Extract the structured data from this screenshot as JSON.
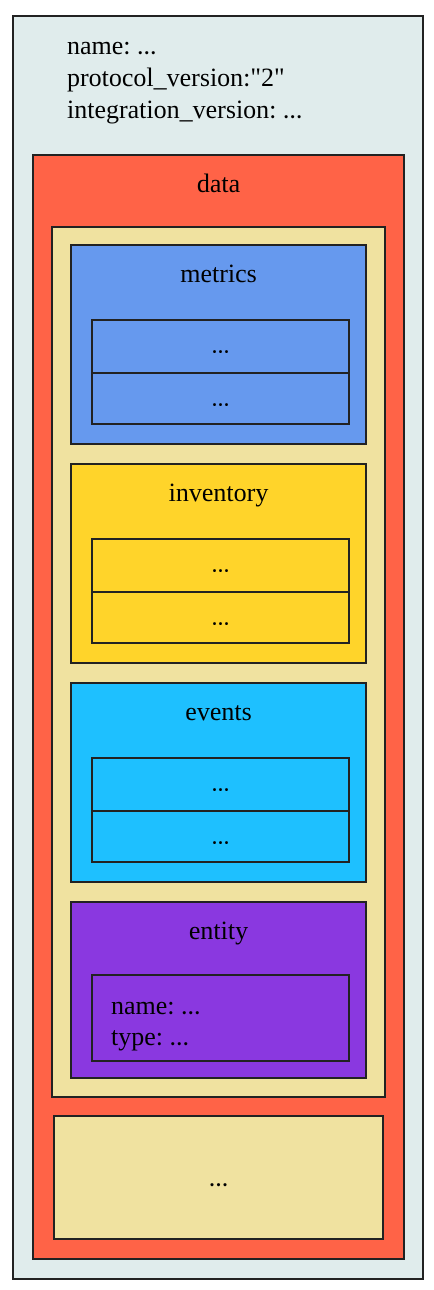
{
  "header": {
    "name_line": "name: ...",
    "protocol_line": "protocol_version:\"2\"",
    "integration_line": "integration_version: ..."
  },
  "data_block": {
    "title": "data",
    "groups": [
      {
        "title": "metrics",
        "items": [
          "...",
          "..."
        ],
        "color": "#6699ee"
      },
      {
        "title": "inventory",
        "items": [
          "...",
          "..."
        ],
        "color": "#ffd42a"
      },
      {
        "title": "events",
        "items": [
          "...",
          "..."
        ],
        "color": "#1ec0ff"
      }
    ],
    "entity": {
      "title": "entity",
      "name_line": "name: ...",
      "type_line": "type: ...",
      "color": "#8a38e0"
    },
    "more": "..."
  },
  "colors": {
    "outer_background": "#e0ecec",
    "data_background": "#ff6347",
    "inner_background": "#f0e2a0"
  }
}
